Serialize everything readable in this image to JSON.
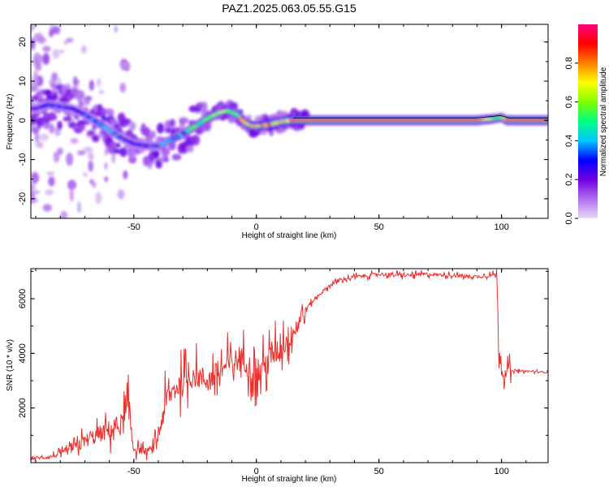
{
  "figure_title": "PAZ1.2025.063.05.55.G15",
  "chart_data": [
    {
      "type": "heatmap",
      "title": "PAZ1.2025.063.05.55.G15",
      "xlabel": "Height of straight line (km)",
      "ylabel": "Frequency (Hz)",
      "xlim": [
        -92,
        119
      ],
      "ylim": [
        -25,
        24.5
      ],
      "xticks": [
        -50,
        0,
        50,
        100
      ],
      "yticks": [
        -20,
        -10,
        0,
        10,
        20
      ],
      "colorbar": {
        "label": "Normalized spectral amplitude",
        "range": [
          0,
          1
        ],
        "ticks": [
          0.0,
          0.2,
          0.4,
          0.6,
          0.8
        ],
        "colormap": [
          "#e8d8f4",
          "#b06ef0",
          "#7000e0",
          "#0000ff",
          "#00c8ff",
          "#00ff80",
          "#80ff00",
          "#ffff00",
          "#ff8000",
          "#ff0000",
          "#ff0080"
        ]
      },
      "ridge": {
        "x": [
          -90,
          -85,
          -80,
          -75,
          -70,
          -65,
          -60,
          -55,
          -50,
          -45,
          -40,
          -35,
          -30,
          -25,
          -20,
          -15,
          -12,
          -8,
          -5,
          -2,
          0,
          5,
          10,
          15,
          20,
          30,
          40,
          50,
          60,
          70,
          80,
          90,
          98,
          100,
          102,
          110,
          119
        ],
        "freq": [
          3,
          4,
          3.5,
          3,
          1.5,
          -0.5,
          -2.5,
          -4.5,
          -6,
          -6.5,
          -6.5,
          -5,
          -3.5,
          -1.5,
          0.5,
          2,
          2.5,
          1.5,
          -0.5,
          -1.5,
          -1.5,
          -1.2,
          -0.3,
          0,
          0,
          0,
          0,
          0,
          0,
          0,
          0,
          0,
          0.5,
          0.8,
          0,
          0,
          0
        ],
        "amplitude": [
          0.25,
          0.3,
          0.3,
          0.3,
          0.3,
          0.35,
          0.35,
          0.3,
          0.3,
          0.3,
          0.3,
          0.4,
          0.4,
          0.5,
          0.5,
          0.55,
          0.6,
          0.55,
          0.75,
          0.75,
          0.75,
          0.8,
          0.85,
          0.9,
          0.9,
          0.9,
          0.9,
          0.9,
          0.9,
          0.9,
          0.9,
          0.9,
          0.55,
          0.5,
          0.9,
          0.9,
          0.9
        ]
      }
    },
    {
      "type": "line",
      "xlabel": "Height of straight line (km)",
      "ylabel": "SNR (10 * v/v)",
      "xlim": [
        -92,
        119
      ],
      "ylim": [
        0,
        7100
      ],
      "xticks": [
        -50,
        0,
        50,
        100
      ],
      "yticks": [
        2000,
        4000,
        6000
      ],
      "line_color": "#e8312e",
      "series": [
        {
          "x": [
            -92,
            -85,
            -80,
            -75,
            -70,
            -65,
            -60,
            -55,
            -52,
            -50,
            -47,
            -45,
            -42,
            -40,
            -37,
            -35,
            -30,
            -25,
            -20,
            -15,
            -10,
            -5,
            0,
            5,
            10,
            15,
            20,
            25,
            30,
            35,
            40,
            50,
            60,
            70,
            80,
            90,
            95,
            98,
            99,
            100,
            101,
            102,
            104,
            110,
            119
          ],
          "values": [
            150,
            200,
            300,
            500,
            800,
            1000,
            1200,
            1400,
            1800,
            500,
            450,
            400,
            500,
            1000,
            2200,
            2500,
            3000,
            3200,
            3000,
            3300,
            3700,
            3800,
            3100,
            3800,
            4200,
            4800,
            5600,
            6100,
            6500,
            6700,
            6800,
            6900,
            6850,
            6900,
            6850,
            6800,
            6850,
            6900,
            4000,
            3600,
            3200,
            3400,
            3350,
            3350,
            3300
          ]
        }
      ]
    }
  ]
}
